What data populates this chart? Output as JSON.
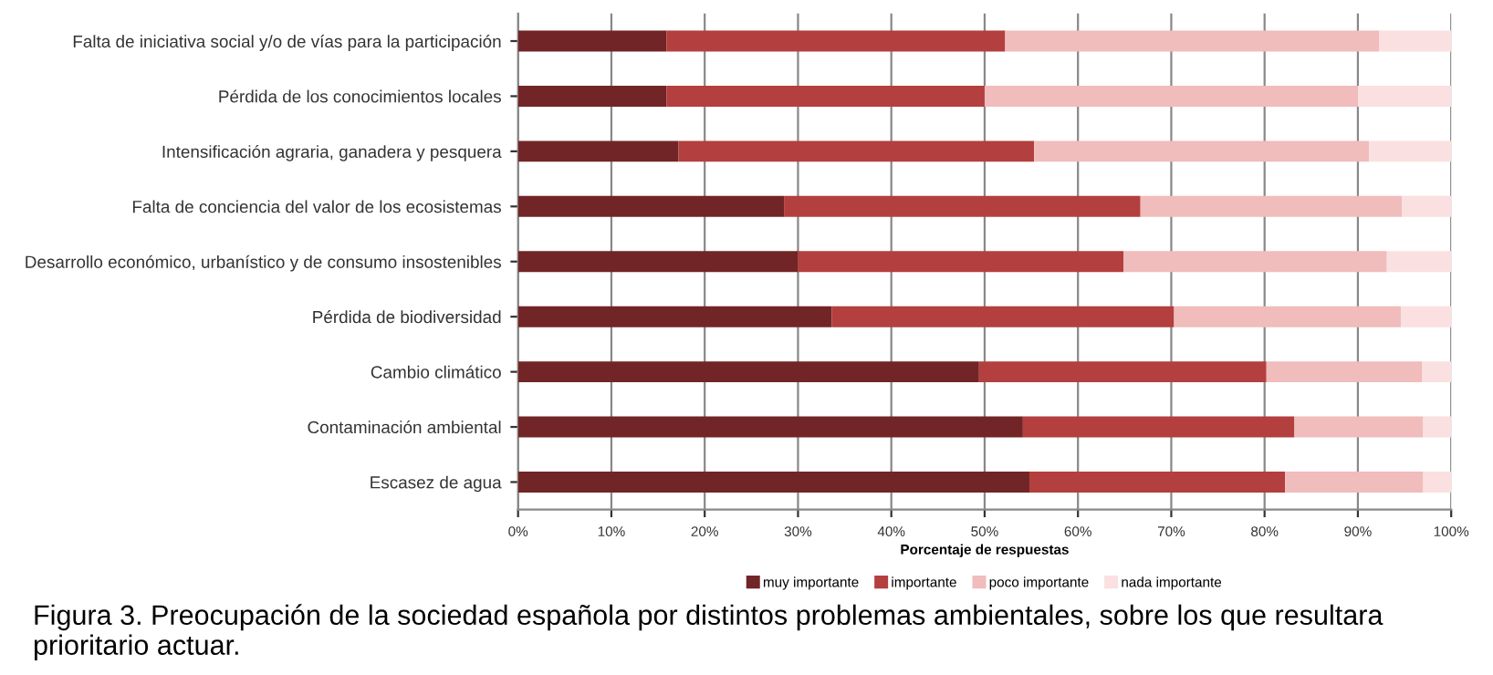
{
  "chart_data": {
    "type": "bar",
    "orientation": "horizontal",
    "stacked": true,
    "xlabel": "Porcentaje de respuestas",
    "categories": [
      "Falta de iniciativa social y/o de vías para la participación",
      "Pérdida de los conocimientos locales",
      "Intensificación agraria, ganadera y pesquera",
      "Falta de conciencia del valor de los ecosistemas",
      "Desarrollo económico, urbanístico y de consumo insostenibles",
      "Pérdida de biodiversidad",
      "Cambio climático",
      "Contaminación ambiental",
      "Escasez de agua"
    ],
    "series": [
      {
        "name": "muy importante",
        "color": "#722526",
        "values": [
          15.9,
          15.9,
          17.2,
          28.5,
          30.0,
          33.6,
          49.4,
          54.1,
          54.8
        ]
      },
      {
        "name": "importante",
        "color": "#b33f3e",
        "values": [
          36.3,
          34.1,
          38.1,
          38.2,
          34.9,
          36.7,
          30.8,
          29.1,
          27.4
        ]
      },
      {
        "name": "poco importante",
        "color": "#f0bcbc",
        "values": [
          40.1,
          40.0,
          35.9,
          28.0,
          28.2,
          24.3,
          16.7,
          13.8,
          14.8
        ]
      },
      {
        "name": "nada importante",
        "color": "#fae0e0",
        "values": [
          7.7,
          10.0,
          8.8,
          5.3,
          6.9,
          5.4,
          3.1,
          3.0,
          3.0
        ]
      }
    ],
    "xlim": [
      0,
      100
    ],
    "xticks": [
      {
        "value": 0,
        "label": "0%"
      },
      {
        "value": 10,
        "label": "10%"
      },
      {
        "value": 20,
        "label": "20%"
      },
      {
        "value": 30,
        "label": "30%"
      },
      {
        "value": 40,
        "label": "40%"
      },
      {
        "value": 50,
        "label": "50%"
      },
      {
        "value": 60,
        "label": "60%"
      },
      {
        "value": 70,
        "label": "70%"
      },
      {
        "value": 80,
        "label": "80%"
      },
      {
        "value": 90,
        "label": "90%"
      },
      {
        "value": 100,
        "label": "100%"
      }
    ],
    "grid": "x",
    "legend": "bottom",
    "annotations": [
      "Figura 3. Preocupación de la sociedad española por distintos problemas ambientales, sobre los que resultara prioritario actuar."
    ]
  }
}
